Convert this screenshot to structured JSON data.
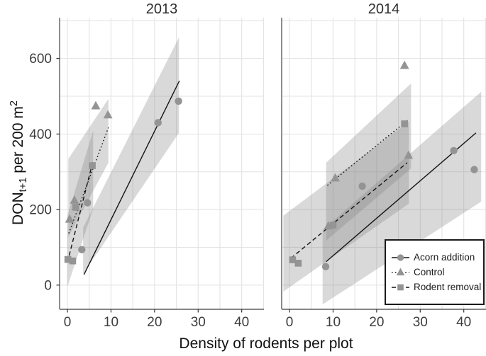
{
  "figure": {
    "background": "#ffffff"
  },
  "chart_data": {
    "type": "scatter",
    "title": "",
    "xlabel": "Density of rodents per plot",
    "ylabel": {
      "main": "DON",
      "sub": "t+1",
      "rest": " per 200 m",
      "sup": "2"
    },
    "x_ticks": [
      0,
      10,
      20,
      30,
      40
    ],
    "y_ticks": [
      0,
      200,
      400,
      600
    ],
    "x_grid_step": 5,
    "y_grid_step": 100,
    "x_grid_max": 45,
    "y_grid_max": 700,
    "x_range": [
      -1.8,
      45.1
    ],
    "y_range": [
      -64,
      708
    ],
    "grid": true,
    "legend_position": "bottom-right inside second panel",
    "legend": {
      "items": [
        {
          "label": "Acorn addition",
          "marker": "circle",
          "line": "solid"
        },
        {
          "label": "Control",
          "marker": "triangle",
          "line": "dotted"
        },
        {
          "label": "Rodent removal",
          "marker": "square",
          "line": "dashed"
        }
      ]
    },
    "panels": [
      {
        "title": "2013",
        "series": [
          {
            "name": "Acorn addition",
            "marker": "circle",
            "line": "solid",
            "points": [
              [
                3.3,
                94
              ],
              [
                4.6,
                218
              ],
              [
                20.8,
                430
              ],
              [
                25.5,
                487
              ]
            ],
            "fit_line": [
              [
                3.8,
                28
              ],
              [
                25.7,
                541
              ]
            ],
            "ci_band": [
              [
                3.6,
                152
              ],
              [
                25.6,
                656
              ],
              [
                25.6,
                403
              ],
              [
                3.6,
                30
              ]
            ]
          },
          {
            "name": "Control",
            "marker": "triangle",
            "line": "dotted",
            "points": [
              [
                0.5,
                174
              ],
              [
                1.6,
                224
              ],
              [
                6.5,
                474
              ],
              [
                9.3,
                450
              ]
            ],
            "fit_line": [
              [
                0.3,
                137
              ],
              [
                9.4,
                417
              ]
            ],
            "ci_band": [
              [
                0.2,
                334
              ],
              [
                9.4,
                493
              ],
              [
                9.4,
                324
              ],
              [
                0.2,
                127
              ]
            ]
          },
          {
            "name": "Rodent removal",
            "marker": "square",
            "line": "dashed",
            "points": [
              [
                0.1,
                68
              ],
              [
                1.2,
                64
              ],
              [
                1.9,
                206
              ],
              [
                5.7,
                316
              ]
            ],
            "fit_line": [
              [
                0.0,
                60
              ],
              [
                5.9,
                330
              ]
            ],
            "ci_band": [
              [
                0.0,
                184
              ],
              [
                5.9,
                409
              ],
              [
                5.9,
                202
              ],
              [
                0.0,
                -4
              ]
            ]
          }
        ]
      },
      {
        "title": "2014",
        "series": [
          {
            "name": "Acorn addition",
            "marker": "circle",
            "line": "solid",
            "points": [
              [
                8.3,
                49
              ],
              [
                16.7,
                262
              ],
              [
                37.7,
                356
              ],
              [
                42.4,
                306
              ]
            ],
            "fit_line": [
              [
                8.4,
                62
              ],
              [
                42.8,
                403
              ]
            ],
            "ci_band": [
              [
                7.6,
                146
              ],
              [
                44.0,
                512
              ],
              [
                44.0,
                221
              ],
              [
                7.6,
                -51
              ]
            ]
          },
          {
            "name": "Control",
            "marker": "triangle",
            "line": "dotted",
            "points": [
              [
                8.9,
                156
              ],
              [
                10.5,
                283
              ],
              [
                26.4,
                581
              ],
              [
                27.3,
                343
              ]
            ],
            "fit_line": [
              [
                8.7,
                264
              ],
              [
                27.5,
                440
              ]
            ],
            "ci_band": [
              [
                8.4,
                324
              ],
              [
                27.9,
                534
              ],
              [
                27.9,
                309
              ],
              [
                8.4,
                118
              ]
            ]
          },
          {
            "name": "Rodent removal",
            "marker": "square",
            "line": "dashed",
            "points": [
              [
                0.7,
                67
              ],
              [
                2.0,
                58
              ],
              [
                10.0,
                159
              ],
              [
                26.4,
                427
              ]
            ],
            "fit_line": [
              [
                0.3,
                71
              ],
              [
                27.0,
                324
              ]
            ],
            "ci_band": [
              [
                -1.4,
                184
              ],
              [
                27.4,
                433
              ],
              [
                27.4,
                216
              ],
              [
                -1.4,
                -17
              ]
            ]
          }
        ]
      }
    ],
    "style": {
      "marker_color": "#949494",
      "line_color": "#141414",
      "band_color": "#7d7d7d",
      "band_opacity": 0.29,
      "grid_color": "#e3e3e3",
      "axis_color": "#5f5f5f",
      "tick_color": "#333333",
      "tick_text_color": "#3d3d3d",
      "title_color": "#2e2e2e"
    }
  }
}
